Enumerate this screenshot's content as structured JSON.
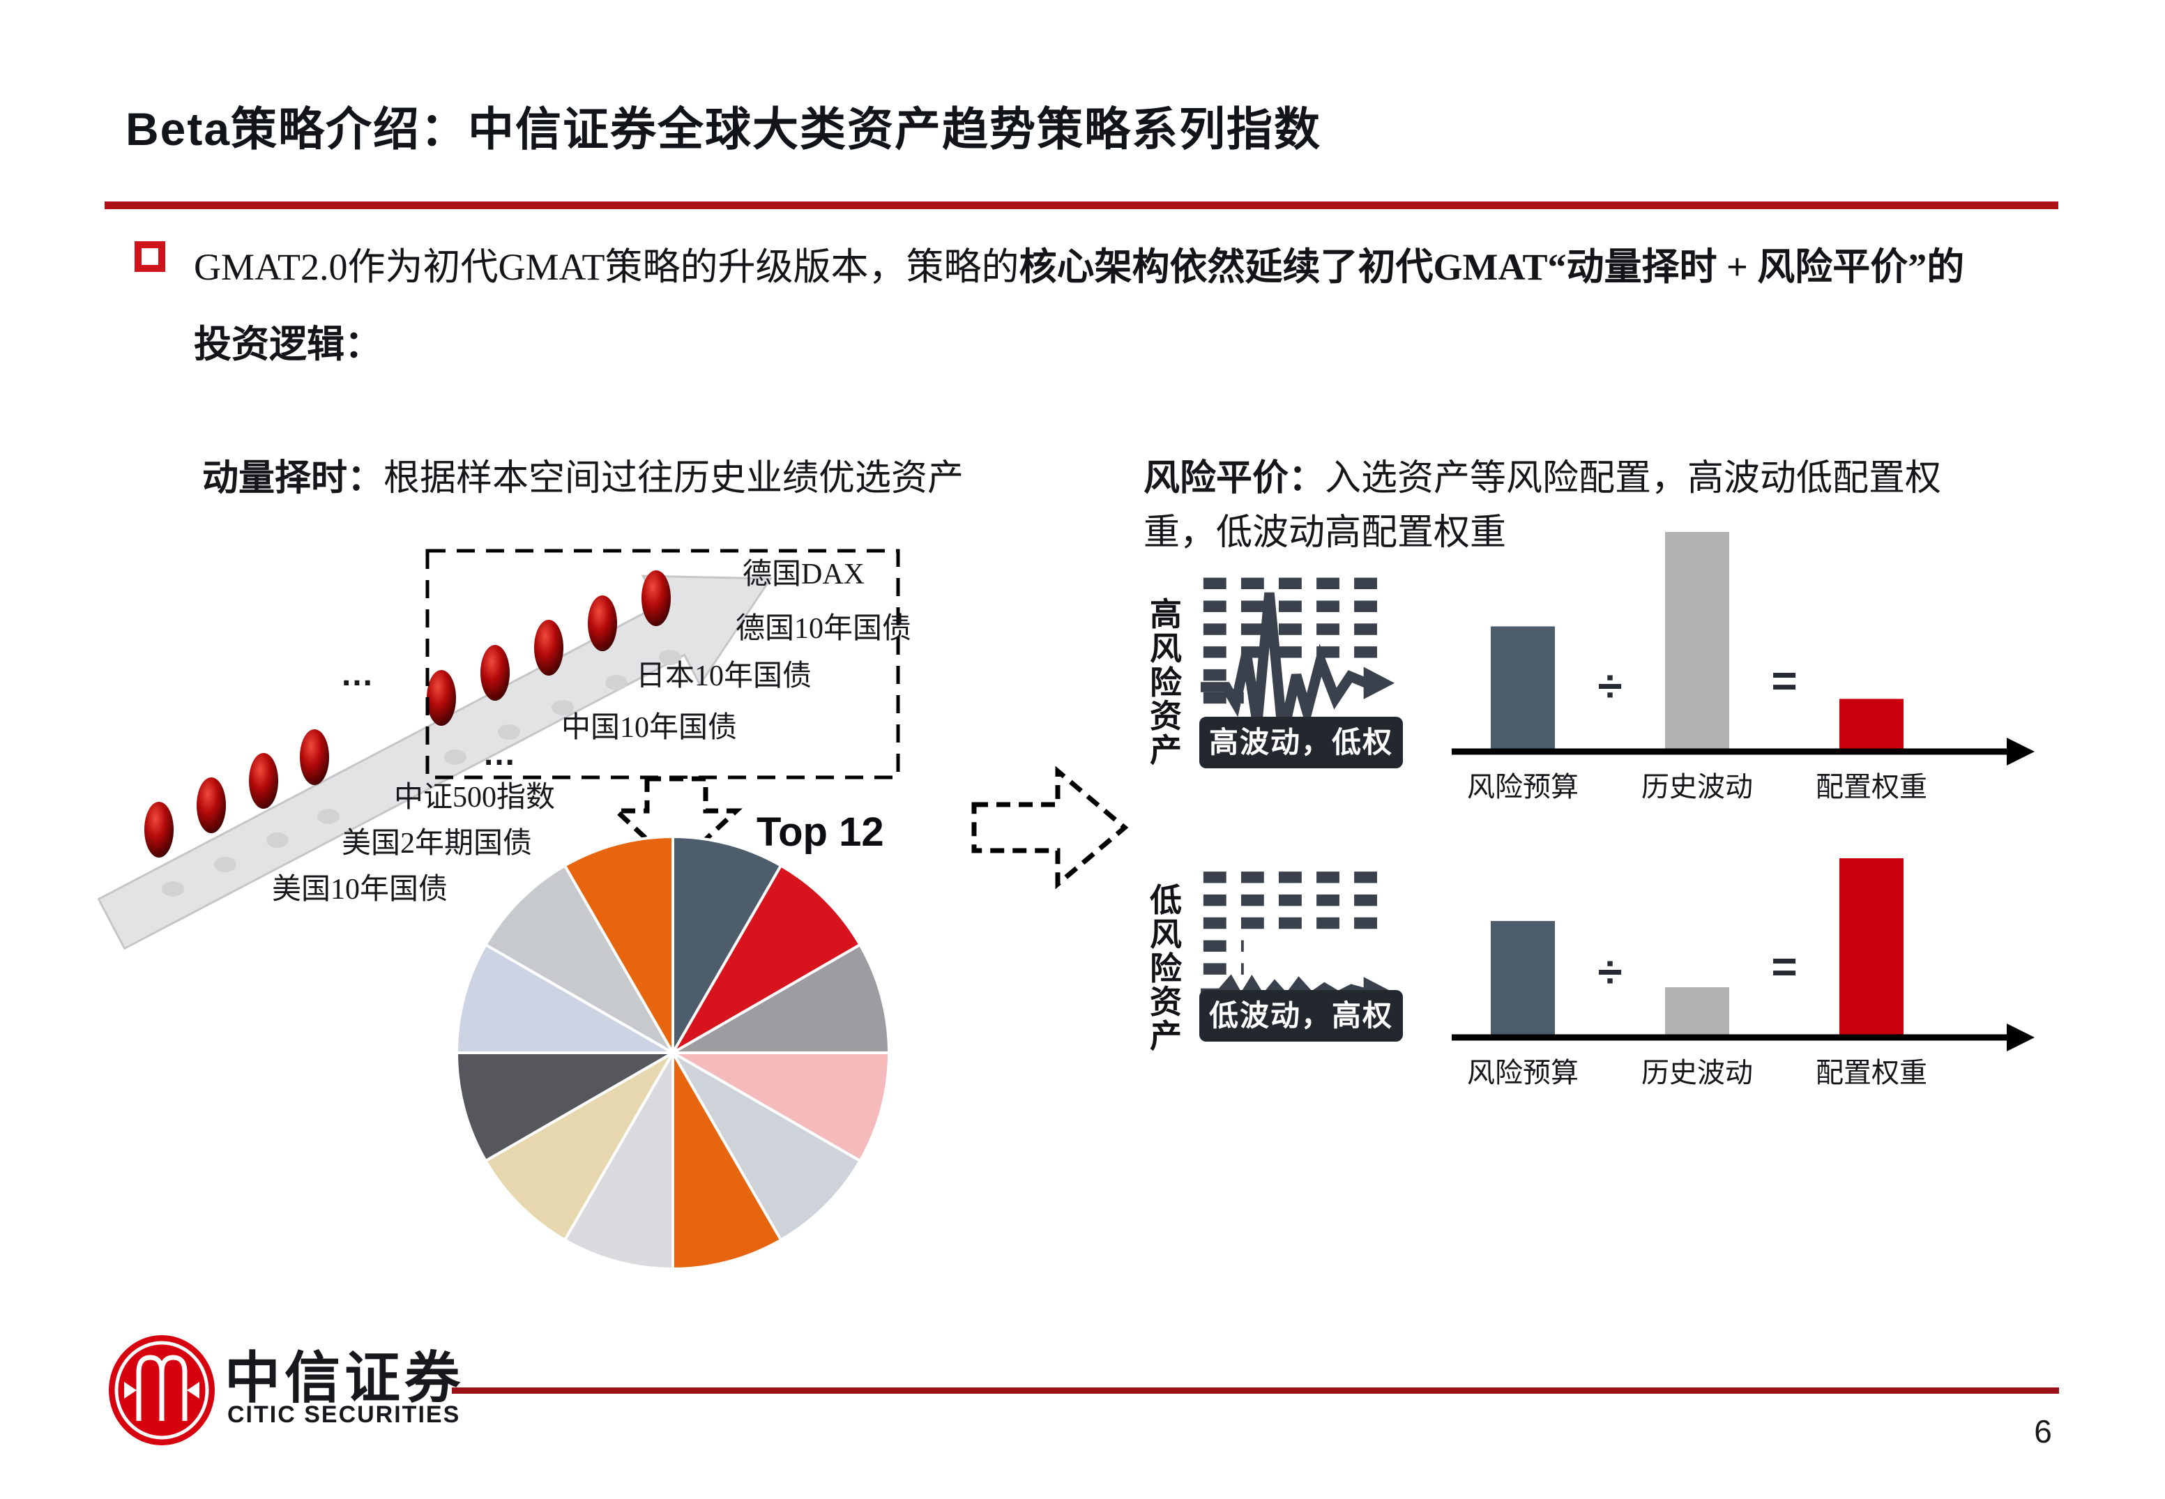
{
  "slide": {
    "title": "Beta策略介绍：中信证券全球大类资产趋势策略系列指数",
    "page_number": "6"
  },
  "bullet": {
    "regular": "GMAT2.0作为初代GMAT策略的升级版本，策略的",
    "bold": "核心架构依然延续了初代GMAT“动量择时 + 风险平价”的",
    "line2": "投资逻辑："
  },
  "momentum": {
    "header_bold": "动量择时：",
    "header_rest": "根据样本空间过往历史业绩优选资产",
    "asset_labels": [
      "德国DAX",
      "德国10年国债",
      "日本10年国债",
      "中国10年国债",
      "中证500指数",
      "美国2年期国债",
      "美国10年国债"
    ],
    "ellipsis_upper": "…",
    "ellipsis_lower": "…",
    "top12_label": "Top 12"
  },
  "risk_parity": {
    "header_bold": "风险平价：",
    "header_line1": "入选资产等风险配置，高波动低配置权",
    "header_line2": "重，低波动高配置权重",
    "high_row": {
      "side_label": "高风险资产",
      "badge": "高波动，低权重",
      "divide": "÷",
      "equals": "="
    },
    "low_row": {
      "side_label": "低风险资产",
      "badge": "低波动，高权重",
      "divide": "÷",
      "equals": "="
    },
    "bar_labels": [
      "风险预算",
      "历史波动",
      "配置权重"
    ]
  },
  "footer": {
    "logo_cn": "中信证券",
    "logo_en": "CITIC SECURITIES"
  },
  "colors": {
    "accent_red": "#ae1117",
    "footer_red": "#9c1116",
    "bar_dark": "#4d5c6b",
    "bar_gray": "#b2b2b4",
    "bar_red": "#c9000b",
    "badge_bg": "#23272e",
    "arrow_gray": "#e3e3e5",
    "bead_red": "#b40a0a"
  },
  "chart_data": [
    {
      "type": "pie",
      "title": "Top 12",
      "values": [
        1,
        1,
        1,
        1,
        1,
        1,
        1,
        1,
        1,
        1,
        1,
        1
      ],
      "colors": [
        "#4e5d6c",
        "#d7141e",
        "#9d9da1",
        "#f5babc",
        "#cdd3d9",
        "#e7650e",
        "#dadade",
        "#e7d7ae",
        "#55575c",
        "#ccd4e4",
        "#c7cacd",
        "#e7650e"
      ],
      "labels": [],
      "legend_position": "none",
      "start_angle": "12-o-clock, clockwise, 12 equal slices"
    },
    {
      "type": "bar",
      "group": "高风险资产",
      "categories": [
        "风险预算",
        "历史波动",
        "配置权重"
      ],
      "values": [
        0.57,
        1.0,
        0.24
      ],
      "colors": [
        "#4d5c6b",
        "#b2b2b4",
        "#c9000b"
      ],
      "operators": [
        "÷",
        "="
      ],
      "xlabel": "",
      "ylabel": "",
      "grid": "off"
    },
    {
      "type": "bar",
      "group": "低风险资产",
      "categories": [
        "风险预算",
        "历史波动",
        "配置权重"
      ],
      "values": [
        0.65,
        0.28,
        1.0
      ],
      "colors": [
        "#4d5c6b",
        "#b2b2b4",
        "#c9000b"
      ],
      "operators": [
        "÷",
        "="
      ],
      "xlabel": "",
      "ylabel": "",
      "grid": "off"
    }
  ]
}
